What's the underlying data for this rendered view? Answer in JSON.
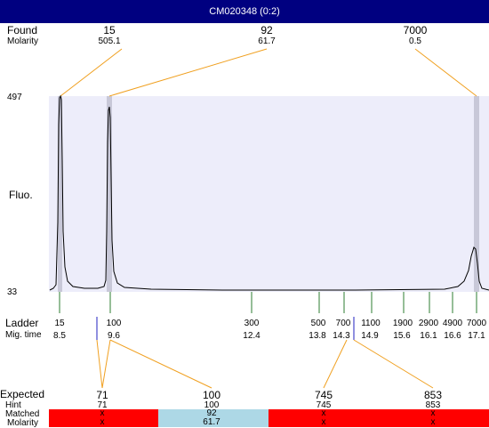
{
  "title": "CM020348 (0:2)",
  "labels": {
    "found": "Found",
    "molarity": "Molarity",
    "fluo": "Fluo.",
    "ladder": "Ladder",
    "mig_time": "Mig. time",
    "expected": "Expected",
    "hint": "Hint",
    "matched": "Matched",
    "molarity2": "Molarity"
  },
  "y_axis": {
    "top": "497",
    "bottom": "33"
  },
  "found": [
    {
      "value": "15",
      "molarity": "505.1"
    },
    {
      "value": "92",
      "molarity": "61.7"
    },
    {
      "value": "7000",
      "molarity": "0.5"
    }
  ],
  "ladder": [
    {
      "size": "15",
      "time": "8.5"
    },
    {
      "size": "100",
      "time": "9.6"
    },
    {
      "size": "300",
      "time": "12.4"
    },
    {
      "size": "500",
      "time": "13.8"
    },
    {
      "size": "700",
      "time": "14.3"
    },
    {
      "size": "1100",
      "time": "14.9"
    },
    {
      "size": "1900",
      "time": "15.6"
    },
    {
      "size": "2900",
      "time": "16.1"
    },
    {
      "size": "4900",
      "time": "16.6"
    },
    {
      "size": "7000",
      "time": "17.1"
    }
  ],
  "expected": [
    {
      "value": "71",
      "hint": "71",
      "matched": "x",
      "molarity": "x"
    },
    {
      "value": "100",
      "hint": "100",
      "matched": "92",
      "molarity": "61.7"
    },
    {
      "value": "745",
      "hint": "745",
      "matched": "x",
      "molarity": "x"
    },
    {
      "value": "853",
      "hint": "853",
      "matched": "x",
      "molarity": "x"
    }
  ],
  "colors": {
    "title_bg": "#000080",
    "plot_bg": "#ededfa",
    "peak_band": "#c8c8d8",
    "leader_line": "#f0a020",
    "ladder_tick": "#2e7d32",
    "marker_blue": "#2020c0",
    "unmatched": "#ff0000",
    "matched": "#add8e6"
  }
}
